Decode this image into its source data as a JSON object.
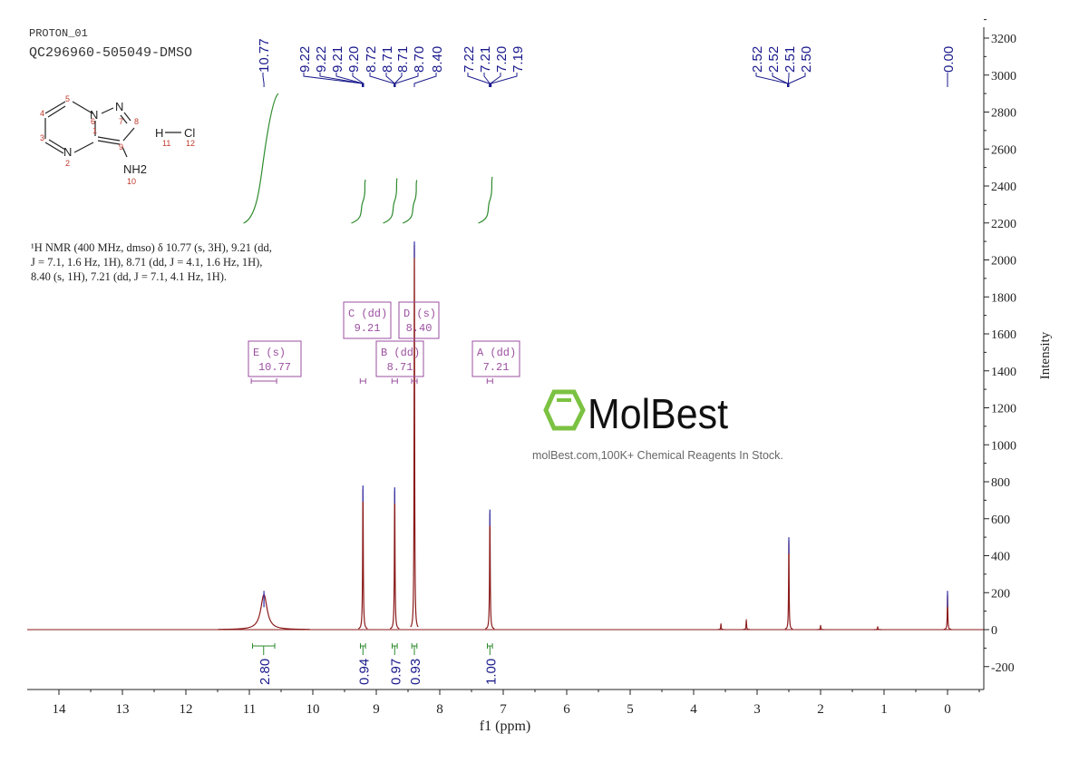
{
  "header": {
    "experiment": "PROTON_01",
    "sample": "QC296960-505049-DMSO"
  },
  "structure": {
    "atoms": [
      "N",
      "N",
      "N",
      "H",
      "Cl",
      "NH2"
    ],
    "numbers": [
      "1",
      "2",
      "3",
      "4",
      "5",
      "6",
      "7",
      "8",
      "9",
      "10",
      "11",
      "12"
    ]
  },
  "description": {
    "line1": "¹H NMR (400 MHz, dmso) δ 10.77 (s, 3H), 9.21 (dd,",
    "line2": "J = 7.1, 1.6 Hz, 1H), 8.71 (dd, J = 4.1, 1.6 Hz, 1H),",
    "line3": "8.40 (s, 1H), 7.21 (dd, J = 7.1, 4.1 Hz, 1H)."
  },
  "watermark": {
    "logo": "MolBest",
    "tagline": "molBest.com,100K+ Chemical Reagents In Stock."
  },
  "colors": {
    "spectrum": "#8b1a1a",
    "integral": "#2e8b2e",
    "labels": "#1a1a8c",
    "multiplet": "#9b4fa0",
    "logo_green": "#7cc242"
  },
  "chart_data": {
    "type": "line",
    "xlabel": "f1 (ppm)",
    "ylabel": "Intensity",
    "xlim": [
      14.5,
      -0.5
    ],
    "ylim": [
      -325,
      3250
    ],
    "x_ticks": [
      "14",
      "13",
      "12",
      "11",
      "10",
      "9",
      "8",
      "7",
      "6",
      "5",
      "4",
      "3",
      "2",
      "1",
      "0"
    ],
    "y_ticks": [
      "-200",
      "0",
      "200",
      "400",
      "600",
      "800",
      "1000",
      "1200",
      "1400",
      "1600",
      "1800",
      "2000",
      "2200",
      "2400",
      "2600",
      "2800",
      "3000",
      "3200"
    ],
    "peaks": [
      {
        "ppm": 10.77,
        "height": 190,
        "width": 0.06
      },
      {
        "ppm": 9.21,
        "height": 760,
        "width": 0.006
      },
      {
        "ppm": 8.71,
        "height": 750,
        "width": 0.006
      },
      {
        "ppm": 8.4,
        "height": 2080,
        "width": 0.005
      },
      {
        "ppm": 7.21,
        "height": 630,
        "width": 0.006
      },
      {
        "ppm": 3.57,
        "height": 30,
        "width": 0.005
      },
      {
        "ppm": 3.17,
        "height": 50,
        "width": 0.005
      },
      {
        "ppm": 2.5,
        "height": 480,
        "width": 0.005
      },
      {
        "ppm": 2.0,
        "height": 22,
        "width": 0.005
      },
      {
        "ppm": 1.1,
        "height": 15,
        "width": 0.005
      },
      {
        "ppm": 0.0,
        "height": 190,
        "width": 0.005
      }
    ],
    "peak_labels": [
      {
        "text": "10.77",
        "ppm": 10.77
      },
      {
        "text": "9.22",
        "ppm": 9.22
      },
      {
        "text": "9.22",
        "ppm": 9.22
      },
      {
        "text": "9.21",
        "ppm": 9.21
      },
      {
        "text": "9.20",
        "ppm": 9.2
      },
      {
        "text": "8.72",
        "ppm": 8.72
      },
      {
        "text": "8.71",
        "ppm": 8.71
      },
      {
        "text": "8.71",
        "ppm": 8.71
      },
      {
        "text": "8.70",
        "ppm": 8.7
      },
      {
        "text": "8.40",
        "ppm": 8.4
      },
      {
        "text": "7.22",
        "ppm": 7.22
      },
      {
        "text": "7.21",
        "ppm": 7.21
      },
      {
        "text": "7.20",
        "ppm": 7.2
      },
      {
        "text": "7.19",
        "ppm": 7.19
      },
      {
        "text": "2.52",
        "ppm": 2.52
      },
      {
        "text": "2.52",
        "ppm": 2.52
      },
      {
        "text": "2.51",
        "ppm": 2.51
      },
      {
        "text": "2.50",
        "ppm": 2.5
      },
      {
        "text": "0.00",
        "ppm": 0.0
      }
    ],
    "integrals": [
      {
        "value": "2.80",
        "from": 10.95,
        "to": 10.6
      },
      {
        "value": "0.94",
        "from": 9.25,
        "to": 9.17
      },
      {
        "value": "0.97",
        "from": 8.75,
        "to": 8.67
      },
      {
        "value": "0.93",
        "from": 8.44,
        "to": 8.36
      },
      {
        "value": "1.00",
        "from": 7.25,
        "to": 7.17
      }
    ],
    "multiplets": [
      {
        "label": "E (s)",
        "shift": "10.77",
        "ppm": 10.77
      },
      {
        "label": "C (dd)",
        "shift": "9.21",
        "ppm": 9.21
      },
      {
        "label": "D (s)",
        "shift": "8.40",
        "ppm": 8.4
      },
      {
        "label": "B (dd)",
        "shift": "8.71",
        "ppm": 8.71
      },
      {
        "label": "A (dd)",
        "shift": "7.21",
        "ppm": 7.21
      }
    ]
  }
}
